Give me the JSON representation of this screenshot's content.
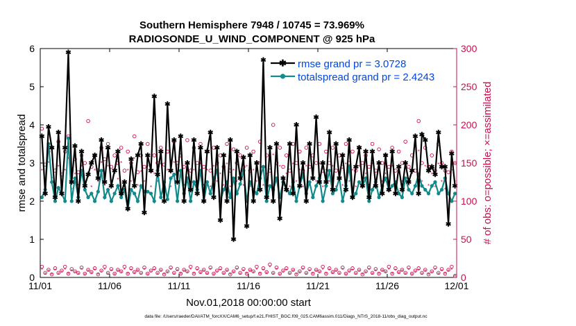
{
  "chart_data": {
    "type": "line",
    "title": "Southern Hemisphere 7948 / 10745 = 73.969%",
    "subtitle": "RADIOSONDE_U_WIND_COMPONENT @ 925 hPa",
    "xlabel": "Nov.01,2018 00:00:00 start",
    "ylabel_left": "rmse and totalspread",
    "ylabel_right": "# of obs: o=possible; ×=assimilated",
    "footnote": "data file: /Users/raeder/DAI/ATM_forcXX/CAM6_setup/f.e21.FHIST_BGC.f09_025.CAM6assim.011/Diags_NTrS_2018-11/obs_diag_output.nc",
    "x_ticks": [
      {
        "day": 0,
        "label": "11/01"
      },
      {
        "day": 5,
        "label": "11/06"
      },
      {
        "day": 10,
        "label": "11/11"
      },
      {
        "day": 15,
        "label": "11/16"
      },
      {
        "day": 20,
        "label": "11/21"
      },
      {
        "day": 25,
        "label": "11/26"
      },
      {
        "day": 30,
        "label": "12/01"
      }
    ],
    "xlim": [
      0,
      30
    ],
    "ylim_left": [
      0,
      6
    ],
    "yticks_left": [
      0,
      1,
      2,
      3,
      4,
      5,
      6
    ],
    "ylim_right": [
      0,
      300
    ],
    "yticks_right": [
      0,
      50,
      100,
      150,
      200,
      250,
      300
    ],
    "colors": {
      "rmse": "#000000",
      "spread": "#138a8a",
      "obs": "#c8104e",
      "legend_text": "#0047e0"
    },
    "legend": [
      {
        "name": "rmse grand pr = 3.0728"
      },
      {
        "name": "totalspread grand pr = 2.4243"
      }
    ],
    "series": [
      {
        "name": "rmse",
        "values": [
          3.7,
          2.2,
          3.95,
          3.4,
          2.1,
          3.8,
          2.2,
          3.4,
          5.9,
          2.5,
          3.45,
          2.0,
          3.3,
          2.4,
          2.7,
          3.0,
          3.2,
          2.6,
          3.6,
          2.5,
          3.4,
          2.4,
          2.8,
          3.3,
          2.2,
          2.5,
          1.8,
          3.1,
          2.4,
          3.2,
          3.5,
          1.7,
          3.2,
          2.8,
          4.75,
          2.7,
          3.3,
          2.0,
          4.55,
          2.8,
          3.6,
          2.5,
          3.7,
          2.0,
          3.0,
          2.3,
          3.6,
          2.2,
          3.4,
          2.0,
          3.3,
          3.8,
          2.1,
          3.4,
          1.5,
          3.2,
          2.0,
          3.6,
          1.0,
          3.3,
          2.6,
          3.15,
          1.35,
          3.2,
          2.0,
          3.0,
          2.3,
          5.7,
          2.1,
          3.4,
          2.0,
          3.5,
          1.55,
          2.6,
          2.3,
          3.5,
          2.2,
          4.0,
          2.4,
          3.0,
          2.0,
          3.5,
          2.6,
          4.2,
          2.5,
          3.0,
          2.5,
          3.8,
          2.3,
          3.5,
          2.6,
          3.2,
          2.3,
          3.6,
          2.1,
          2.9,
          3.4,
          2.4,
          3.3,
          2.1,
          3.3,
          2.4,
          3.0,
          2.2,
          3.2,
          2.3,
          3.3,
          2.2,
          2.9,
          2.3,
          3.0,
          2.5,
          2.8,
          3.7,
          2.2,
          3.75,
          3.6,
          2.8,
          2.9,
          2.7,
          3.8,
          2.9,
          2.9,
          1.4,
          3.25,
          2.4
        ]
      },
      {
        "name": "totalspread",
        "values": [
          2.1,
          2.3,
          3.5,
          2.5,
          2.0,
          2.35,
          2.2,
          2.0,
          3.65,
          2.0,
          2.6,
          2.1,
          2.8,
          2.3,
          2.1,
          2.2,
          2.0,
          2.25,
          2.8,
          2.1,
          2.3,
          2.0,
          2.2,
          2.4,
          2.1,
          2.3,
          1.8,
          2.3,
          2.2,
          2.0,
          2.4,
          2.25,
          2.25,
          2.2,
          2.0,
          2.8,
          2.1,
          2.5,
          2.05,
          2.6,
          2.7,
          2.0,
          2.8,
          2.2,
          2.6,
          2.0,
          2.5,
          2.3,
          2.8,
          2.0,
          2.5,
          2.2,
          2.6,
          2.8,
          2.0,
          2.3,
          2.5,
          2.1,
          2.6,
          2.2,
          2.45,
          2.8,
          2.0,
          2.5,
          2.3,
          2.2,
          2.6,
          2.9,
          2.0,
          2.4,
          2.3,
          2.6,
          2.1,
          2.5,
          2.3,
          2.2,
          2.5,
          2.0,
          2.4,
          2.7,
          2.2,
          2.5,
          2.1,
          2.4,
          2.6,
          2.0,
          2.4,
          2.8,
          2.2,
          2.3,
          2.6,
          2.0,
          2.4,
          2.9,
          2.1,
          2.2,
          2.5,
          2.4,
          2.6,
          2.0,
          2.3,
          2.5,
          2.1,
          2.4,
          2.6,
          2.3,
          2.4,
          2.5,
          2.2,
          2.1,
          2.6,
          2.3,
          2.2,
          2.4,
          2.7,
          2.4,
          2.3,
          2.2,
          2.4,
          2.5,
          2.2,
          2.3,
          2.6,
          2.2,
          2.0,
          2.2
        ]
      }
    ],
    "obs_possible_high": [
      195,
      148,
      165,
      170,
      140,
      178,
      135,
      165,
      185,
      140,
      155,
      138,
      160,
      150,
      205,
      145,
      160,
      140,
      170,
      155,
      175,
      145,
      160,
      150,
      170,
      140,
      165,
      150,
      185,
      138,
      160,
      145,
      175,
      140,
      160,
      150,
      170,
      148,
      165,
      140,
      178,
      150,
      160,
      145,
      180,
      140,
      170,
      150,
      175,
      145,
      165,
      140,
      170,
      150,
      160,
      145,
      175,
      140,
      168,
      150,
      160,
      145,
      170,
      140,
      165,
      150,
      178,
      145,
      160,
      140,
      200,
      150,
      170,
      145,
      160,
      140,
      175,
      150,
      165,
      140,
      170,
      145,
      160,
      150,
      175,
      140,
      165,
      150,
      170,
      140,
      160,
      145,
      175,
      150,
      165,
      140,
      170,
      150,
      160,
      145,
      175,
      140,
      168,
      150,
      160,
      145,
      170,
      140,
      165,
      150,
      178,
      145,
      160,
      140,
      205,
      150,
      170,
      145,
      160,
      140,
      175,
      150,
      140,
      138,
      165,
      150
    ],
    "obs_assimilated_high": [
      140,
      120,
      150,
      130,
      118,
      145,
      125,
      140,
      155,
      115,
      135,
      120,
      145,
      125,
      135,
      118,
      140,
      125,
      150,
      120,
      145,
      122,
      135,
      128,
      150,
      118,
      140,
      125,
      155,
      120,
      138,
      125,
      145,
      118,
      135,
      125,
      148,
      120,
      140,
      118,
      150,
      125,
      138,
      120,
      150,
      115,
      140,
      125,
      148,
      120,
      140,
      118,
      145,
      125,
      135,
      120,
      148,
      118,
      140,
      125,
      135,
      120,
      145,
      118,
      140,
      125,
      150,
      120,
      135,
      118,
      160,
      125,
      145,
      120,
      135,
      118,
      148,
      125,
      140,
      118,
      145,
      120,
      135,
      125,
      148,
      118,
      140,
      125,
      145,
      118,
      135,
      120,
      148,
      125,
      140,
      118,
      145,
      125,
      135,
      120,
      148,
      118,
      140,
      125,
      135,
      120,
      145,
      118,
      140,
      125,
      150,
      120,
      135,
      118,
      165,
      125,
      145,
      120,
      135,
      118,
      148,
      125,
      115,
      110,
      140,
      125
    ],
    "obs_possible_low": [
      14,
      6,
      10,
      4,
      12,
      6,
      9,
      14,
      5,
      11,
      8,
      6,
      13,
      5,
      10,
      7,
      12,
      4,
      9,
      14,
      6,
      11,
      5,
      10,
      8,
      14,
      5,
      12,
      7,
      10,
      6,
      13,
      5,
      9,
      12,
      6,
      10,
      4,
      8,
      13,
      6,
      11,
      5,
      10,
      8,
      14,
      5,
      12,
      7,
      10,
      6,
      13,
      5,
      9,
      12,
      6,
      10,
      4,
      8,
      13,
      6,
      11,
      5,
      10,
      8,
      14,
      5,
      12,
      7,
      17,
      6,
      13,
      5,
      9,
      12,
      6,
      10,
      4,
      8,
      13,
      6,
      11,
      5,
      10,
      8,
      14,
      5,
      12,
      7,
      10,
      6,
      13,
      5,
      9,
      12,
      6,
      10,
      4,
      8,
      13,
      6,
      11,
      5,
      10,
      8,
      14,
      5,
      12,
      7,
      10,
      6,
      13,
      5,
      9,
      12,
      6,
      10,
      4,
      8,
      13,
      6,
      11,
      5,
      10,
      14,
      2
    ],
    "obs_assimilated_low": [
      10,
      4,
      8,
      3,
      9,
      4,
      7,
      10,
      4,
      8,
      6,
      4,
      10,
      3,
      8,
      5,
      9,
      3,
      7,
      10,
      4,
      8,
      3,
      8,
      6,
      10,
      4,
      9,
      5,
      8,
      4,
      10,
      3,
      7,
      9,
      4,
      8,
      3,
      6,
      10,
      4,
      8,
      4,
      8,
      6,
      10,
      4,
      9,
      5,
      8,
      4,
      10,
      3,
      7,
      9,
      4,
      8,
      3,
      6,
      10,
      4,
      8,
      4,
      8,
      6,
      10,
      4,
      9,
      5,
      13,
      4,
      10,
      3,
      7,
      9,
      4,
      8,
      3,
      6,
      10,
      4,
      8,
      4,
      8,
      6,
      10,
      4,
      9,
      5,
      8,
      4,
      10,
      3,
      7,
      9,
      4,
      8,
      3,
      6,
      10,
      4,
      8,
      4,
      8,
      6,
      10,
      4,
      9,
      5,
      8,
      4,
      10,
      3,
      7,
      9,
      4,
      8,
      3,
      6,
      10,
      4,
      8,
      4,
      8,
      10,
      1
    ]
  }
}
